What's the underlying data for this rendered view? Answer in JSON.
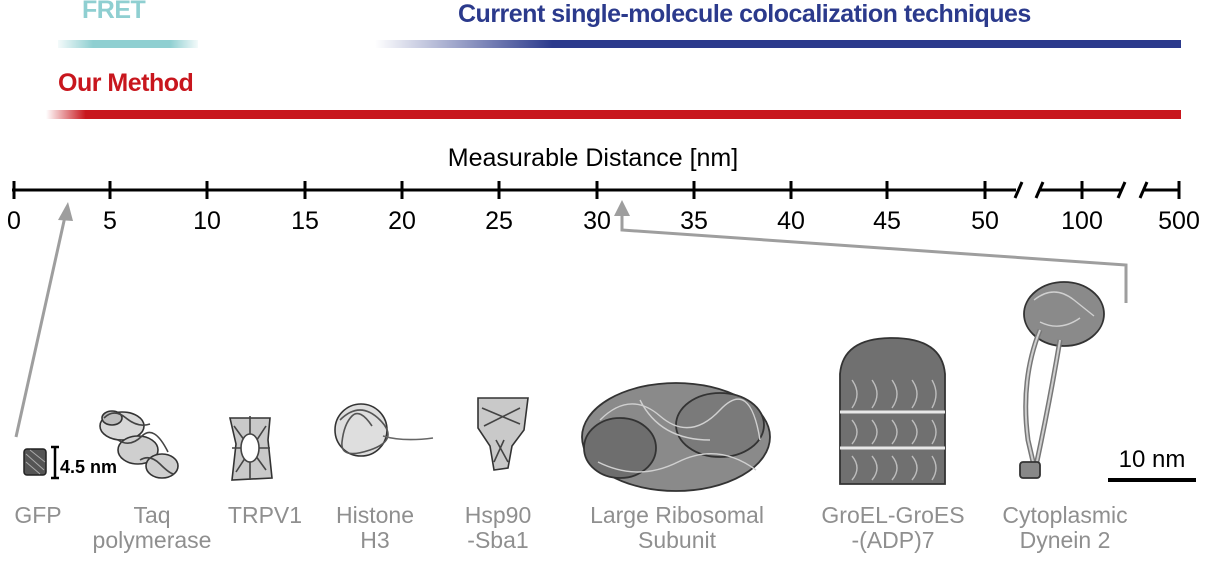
{
  "ranges": {
    "fret": {
      "label": "FRET",
      "color": "#8fcfd1",
      "from": 0,
      "to": 8
    },
    "colocalization": {
      "label": "Current single-molecule colocalization techniques",
      "color": "#2b3a8c",
      "from": 13.5,
      "to": 500
    },
    "our_method": {
      "label": "Our Method",
      "color": "#c8161d",
      "from": 0,
      "to": 500
    }
  },
  "axis": {
    "title": "Measurable Distance [nm]",
    "ticks": [
      "0",
      "5",
      "10",
      "15",
      "20",
      "25",
      "30",
      "35",
      "40",
      "45",
      "50",
      "100",
      "500"
    ],
    "breaks": [
      "50-100",
      "100-500"
    ]
  },
  "size_annotation": "4.5 nm",
  "scale_bar_label": "10 nm",
  "molecules": [
    {
      "id": "gfp",
      "lines": [
        "GFP"
      ],
      "size_nm": 4.5
    },
    {
      "id": "taq",
      "lines": [
        "Taq",
        "polymerase"
      ]
    },
    {
      "id": "trpv1",
      "lines": [
        "TRPV1"
      ]
    },
    {
      "id": "histone",
      "lines": [
        "Histone",
        "H3"
      ]
    },
    {
      "id": "hsp90",
      "lines": [
        "Hsp90",
        "-Sba1"
      ]
    },
    {
      "id": "ribosome",
      "lines": [
        "Large Ribosomal",
        "Subunit"
      ]
    },
    {
      "id": "groel",
      "lines": [
        "GroEL-GroES",
        "-(ADP)7"
      ]
    },
    {
      "id": "dynein",
      "lines": [
        "Cytoplasmic",
        "Dynein 2"
      ],
      "size_nm": 30
    }
  ],
  "colors": {
    "axis": "#000000",
    "arrow": "#9e9e9e",
    "structure": "#3a3a3a",
    "label": "#8f8f8f"
  }
}
